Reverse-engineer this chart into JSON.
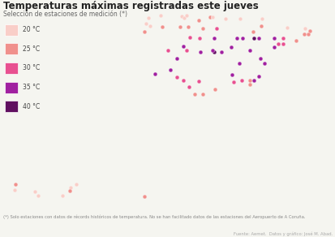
{
  "title": "Temperaturas máximas registradas este jueves",
  "subtitle": "Selección de estaciones de medición (*)",
  "footnote": "(*) Solo estaciones con datos de récords históricos de temperatura. No se han facilitado datos de las estaciones del Aeropuerto de A Coruña.",
  "source": "Fuente: Aemet.  Datos y gráfico: José M. Abad.",
  "background_color": "#f5f5f0",
  "map_fill": "#e8e8e4",
  "map_edge": "#c0c0bc",
  "legend": {
    "labels": [
      "20 °C",
      "25 °C",
      "30 °C",
      "35 °C",
      "40 °C"
    ],
    "colors": [
      "#f9cec8",
      "#f0908c",
      "#e85090",
      "#a020a0",
      "#601060"
    ]
  },
  "stations": [
    {
      "lon": -8.4,
      "lat": 43.37,
      "temp": 20
    },
    {
      "lon": -8.55,
      "lat": 42.88,
      "temp": 20
    },
    {
      "lon": -8.25,
      "lat": 42.65,
      "temp": 20
    },
    {
      "lon": -7.55,
      "lat": 43.55,
      "temp": 20
    },
    {
      "lon": -6.0,
      "lat": 43.53,
      "temp": 20
    },
    {
      "lon": -5.85,
      "lat": 43.37,
      "temp": 20
    },
    {
      "lon": -5.65,
      "lat": 43.55,
      "temp": 20
    },
    {
      "lon": -4.0,
      "lat": 43.47,
      "temp": 25
    },
    {
      "lon": -3.82,
      "lat": 43.45,
      "temp": 20
    },
    {
      "lon": -2.9,
      "lat": 43.28,
      "temp": 20
    },
    {
      "lon": -1.82,
      "lat": 43.32,
      "temp": 20
    },
    {
      "lon": -8.7,
      "lat": 42.2,
      "temp": 25
    },
    {
      "lon": -7.4,
      "lat": 42.58,
      "temp": 25
    },
    {
      "lon": -6.15,
      "lat": 42.6,
      "temp": 25
    },
    {
      "lon": -5.55,
      "lat": 42.6,
      "temp": 25
    },
    {
      "lon": -4.8,
      "lat": 43.15,
      "temp": 25
    },
    {
      "lon": -3.52,
      "lat": 42.45,
      "temp": 30
    },
    {
      "lon": -4.52,
      "lat": 42.45,
      "temp": 25
    },
    {
      "lon": -5.42,
      "lat": 41.68,
      "temp": 30
    },
    {
      "lon": -4.72,
      "lat": 41.65,
      "temp": 30
    },
    {
      "lon": -3.68,
      "lat": 41.65,
      "temp": 35
    },
    {
      "lon": -3.2,
      "lat": 40.45,
      "temp": 35
    },
    {
      "lon": -3.68,
      "lat": 40.4,
      "temp": 40
    },
    {
      "lon": -3.82,
      "lat": 40.55,
      "temp": 35
    },
    {
      "lon": -4.68,
      "lat": 40.4,
      "temp": 35
    },
    {
      "lon": -5.9,
      "lat": 40.95,
      "temp": 35
    },
    {
      "lon": -6.38,
      "lat": 39.88,
      "temp": 35
    },
    {
      "lon": -5.65,
      "lat": 40.55,
      "temp": 30
    },
    {
      "lon": -6.98,
      "lat": 40.55,
      "temp": 30
    },
    {
      "lon": -7.9,
      "lat": 38.52,
      "temp": 35
    },
    {
      "lon": -6.82,
      "lat": 38.9,
      "temp": 35
    },
    {
      "lon": -6.35,
      "lat": 38.28,
      "temp": 30
    },
    {
      "lon": -5.88,
      "lat": 38.0,
      "temp": 30
    },
    {
      "lon": -4.77,
      "lat": 37.88,
      "temp": 30
    },
    {
      "lon": -5.48,
      "lat": 37.38,
      "temp": 30
    },
    {
      "lon": -5.1,
      "lat": 36.78,
      "temp": 25
    },
    {
      "lon": -4.48,
      "lat": 36.75,
      "temp": 25
    },
    {
      "lon": -3.62,
      "lat": 37.17,
      "temp": 25
    },
    {
      "lon": -2.28,
      "lat": 37.85,
      "temp": 30
    },
    {
      "lon": -1.12,
      "lat": 37.62,
      "temp": 25
    },
    {
      "lon": -0.83,
      "lat": 37.97,
      "temp": 35
    },
    {
      "lon": -0.48,
      "lat": 38.35,
      "temp": 35
    },
    {
      "lon": -0.12,
      "lat": 39.47,
      "temp": 35
    },
    {
      "lon": -0.4,
      "lat": 39.88,
      "temp": 35
    },
    {
      "lon": -1.13,
      "lat": 38.0,
      "temp": 25
    },
    {
      "lon": -1.7,
      "lat": 38.0,
      "temp": 30
    },
    {
      "lon": -2.43,
      "lat": 38.48,
      "temp": 35
    },
    {
      "lon": -1.9,
      "lat": 39.48,
      "temp": 35
    },
    {
      "lon": -1.12,
      "lat": 40.58,
      "temp": 35
    },
    {
      "lon": -2.48,
      "lat": 40.82,
      "temp": 35
    },
    {
      "lon": -2.08,
      "lat": 41.65,
      "temp": 35
    },
    {
      "lon": -1.65,
      "lat": 41.65,
      "temp": 35
    },
    {
      "lon": -0.88,
      "lat": 41.65,
      "temp": 40
    },
    {
      "lon": -0.52,
      "lat": 41.65,
      "temp": 35
    },
    {
      "lon": -0.9,
      "lat": 42.2,
      "temp": 25
    },
    {
      "lon": -0.35,
      "lat": 42.68,
      "temp": 25
    },
    {
      "lon": 0.6,
      "lat": 40.82,
      "temp": 35
    },
    {
      "lon": 0.58,
      "lat": 41.62,
      "temp": 35
    },
    {
      "lon": 0.88,
      "lat": 41.12,
      "temp": 30
    },
    {
      "lon": 1.25,
      "lat": 41.12,
      "temp": 30
    },
    {
      "lon": 1.25,
      "lat": 41.62,
      "temp": 30
    },
    {
      "lon": 2.18,
      "lat": 41.38,
      "temp": 25
    },
    {
      "lon": 2.75,
      "lat": 41.98,
      "temp": 25
    },
    {
      "lon": 3.05,
      "lat": 41.98,
      "temp": 25
    },
    {
      "lon": 2.82,
      "lat": 42.47,
      "temp": 20
    },
    {
      "lon": 3.12,
      "lat": 42.28,
      "temp": 25
    },
    {
      "lon": -0.28,
      "lat": 43.32,
      "temp": 20
    },
    {
      "lon": 1.5,
      "lat": 42.55,
      "temp": 20
    },
    {
      "lon": -8.67,
      "lat": 27.93,
      "temp": 25
    },
    {
      "lon": -13.55,
      "lat": 28.98,
      "temp": 20
    },
    {
      "lon": -13.95,
      "lat": 28.72,
      "temp": 20
    },
    {
      "lon": -14.02,
      "lat": 28.45,
      "temp": 25
    },
    {
      "lon": -14.52,
      "lat": 28.03,
      "temp": 20
    },
    {
      "lon": -17.9,
      "lat": 28.98,
      "temp": 25
    },
    {
      "lon": -17.98,
      "lat": 28.55,
      "temp": 20
    },
    {
      "lon": -16.52,
      "lat": 28.38,
      "temp": 20
    },
    {
      "lon": -16.28,
      "lat": 28.05,
      "temp": 20
    }
  ]
}
